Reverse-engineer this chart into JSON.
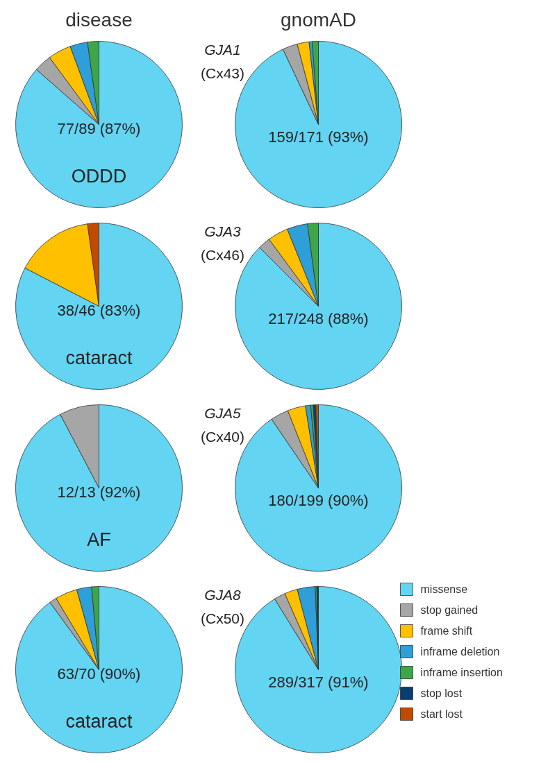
{
  "chart_data": [
    {
      "type": "pie",
      "title": "disease",
      "categories": [
        "missense",
        "stop gained",
        "frame shift",
        "inframe deletion",
        "inframe insertion",
        "stop lost",
        "start lost"
      ],
      "values": [
        86.5,
        3.4,
        4.5,
        3.4,
        2.2,
        0,
        0
      ],
      "colors": [
        "#63d4f2",
        "#a6a6a6",
        "#ffc000",
        "#2e9fd8",
        "#3fa648",
        "#0b3d6e",
        "#c04a00"
      ],
      "annotations": [
        "77/89 (87%)",
        "ODDD"
      ],
      "legend": "bottom right"
    },
    {
      "type": "pie",
      "title": "gnomAD",
      "categories": [
        null,
        null,
        null,
        null,
        null,
        null,
        null
      ],
      "values": [
        93.0,
        2.9,
        2.3,
        0.6,
        1.2,
        0,
        0
      ],
      "colors": [
        "#63d4f2",
        "#a6a6a6",
        "#ffc000",
        "#2e9fd8",
        "#3fa648",
        "#0b3d6e",
        "#c04a00"
      ],
      "annotations": [
        "159/171 (93%)",
        "GJA1",
        "(Cx43)"
      ]
    },
    {
      "type": "pie",
      "categories": [
        null,
        null,
        null,
        null,
        null,
        null,
        null
      ],
      "values": [
        82.6,
        0,
        15.2,
        0,
        0,
        0,
        2.2
      ],
      "colors": [
        "#63d4f2",
        "#a6a6a6",
        "#ffc000",
        "#2e9fd8",
        "#3fa648",
        "#0b3d6e",
        "#c04a00"
      ],
      "annotations": [
        "38/46 (83%)",
        "cataract"
      ]
    },
    {
      "type": "pie",
      "categories": [
        null,
        null,
        null,
        null,
        null,
        null,
        null
      ],
      "values": [
        87.5,
        2.4,
        4.0,
        4.0,
        2.1,
        0,
        0
      ],
      "colors": [
        "#63d4f2",
        "#a6a6a6",
        "#ffc000",
        "#2e9fd8",
        "#3fa648",
        "#0b3d6e",
        "#c04a00"
      ],
      "annotations": [
        "217/248 (88%)",
        "GJA3",
        "(Cx46)"
      ]
    },
    {
      "type": "pie",
      "categories": [
        null,
        null,
        null,
        null,
        null,
        null,
        null
      ],
      "values": [
        92.3,
        7.7,
        0,
        0,
        0,
        0,
        0
      ],
      "colors": [
        "#63d4f2",
        "#a6a6a6",
        "#ffc000",
        "#2e9fd8",
        "#3fa648",
        "#0b3d6e",
        "#c04a00"
      ],
      "annotations": [
        "12/13 (92%)",
        "AF"
      ]
    },
    {
      "type": "pie",
      "categories": [
        null,
        null,
        null,
        null,
        null,
        null,
        null
      ],
      "values": [
        90.5,
        3.5,
        3.5,
        1.0,
        0.5,
        0.5,
        0.5
      ],
      "colors": [
        "#63d4f2",
        "#a6a6a6",
        "#ffc000",
        "#2e9fd8",
        "#3fa648",
        "#0b3d6e",
        "#c04a00"
      ],
      "annotations": [
        "180/199 (90%)",
        "GJA5",
        "(Cx40)"
      ]
    },
    {
      "type": "pie",
      "categories": [
        null,
        null,
        null,
        null,
        null,
        null,
        null
      ],
      "values": [
        90.0,
        1.4,
        4.3,
        2.9,
        1.4,
        0,
        0
      ],
      "colors": [
        "#63d4f2",
        "#a6a6a6",
        "#ffc000",
        "#2e9fd8",
        "#3fa648",
        "#0b3d6e",
        "#c04a00"
      ],
      "annotations": [
        "63/70 (90%)",
        "cataract"
      ]
    },
    {
      "type": "pie",
      "categories": [
        null,
        null,
        null,
        null,
        null,
        null,
        null
      ],
      "values": [
        91.2,
        2.2,
        2.5,
        3.5,
        0.3,
        0.3,
        0
      ],
      "colors": [
        "#63d4f2",
        "#a6a6a6",
        "#ffc000",
        "#2e9fd8",
        "#3fa648",
        "#0b3d6e",
        "#c04a00"
      ],
      "annotations": [
        "289/317 (91%)",
        "GJA8",
        "(Cx50)"
      ]
    }
  ]
}
